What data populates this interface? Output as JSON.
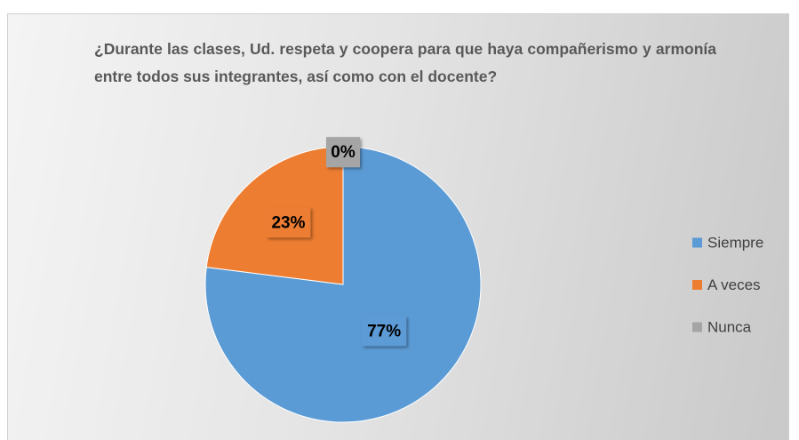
{
  "chart_data": {
    "type": "pie",
    "title": "¿Durante las clases, Ud. respeta y coopera para que haya compañerismo y armonía entre todos sus integrantes, así como con el docente?",
    "categories": [
      "Siempre",
      "A veces",
      "Nunca"
    ],
    "values": [
      77,
      23,
      0
    ],
    "value_labels": [
      "77%",
      "23%",
      "0%"
    ],
    "colors": [
      "#5b9bd5",
      "#ed7d31",
      "#a5a5a5"
    ],
    "legend": "right"
  }
}
